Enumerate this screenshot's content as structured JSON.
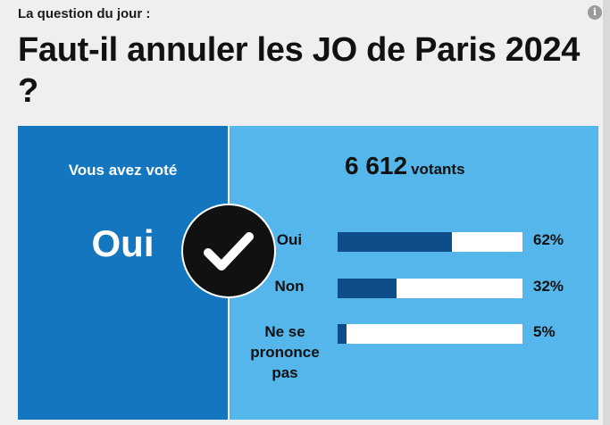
{
  "header": {
    "kicker": "La question du jour :",
    "question": "Faut-il annuler les JO de Paris 2024 ?",
    "info_icon_glyph": "i"
  },
  "vote": {
    "label": "Vous avez voté",
    "answer": "Oui"
  },
  "results": {
    "count": "6 612",
    "count_unit": "votants",
    "rows": [
      {
        "label": "Oui",
        "percent": 62,
        "percent_text": "62%"
      },
      {
        "label": "Non",
        "percent": 32,
        "percent_text": "32%"
      },
      {
        "label": "Ne se prononce pas",
        "percent": 5,
        "percent_text": "5%"
      }
    ]
  },
  "colors": {
    "panel_blue": "#54b6ea",
    "voted_blue": "#1376bf",
    "bar_fill": "#0f4c8a",
    "check_circle": "#111111"
  },
  "icons": {
    "info": "info-icon",
    "check": "checkmark-icon"
  }
}
